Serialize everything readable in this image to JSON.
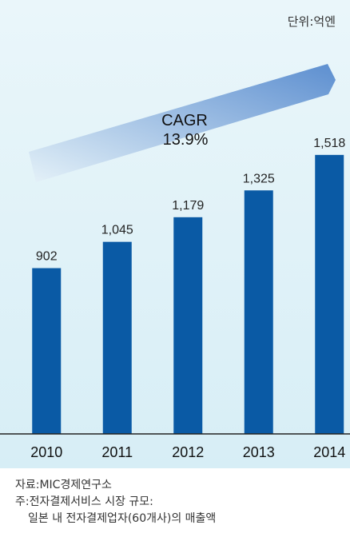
{
  "unit_label": "단위:억엔",
  "chart_data": {
    "type": "bar",
    "categories": [
      "2010",
      "2011",
      "2012",
      "2013",
      "2014"
    ],
    "values": [
      902,
      1045,
      1179,
      1325,
      1518
    ],
    "value_labels": [
      "902",
      "1,045",
      "1,179",
      "1,325",
      "1,518"
    ],
    "ylim": [
      0,
      1800
    ],
    "bar_color": "#0a5aa5",
    "annotation": {
      "line1": "CAGR",
      "line2": "13.9%"
    }
  },
  "notes": {
    "source": "자료:MIC경제연구소",
    "note_line1": "주:전자결제서비스 시장 규모:",
    "note_line2": "일본 내 전자결제업자(60개사)의 매출액"
  }
}
